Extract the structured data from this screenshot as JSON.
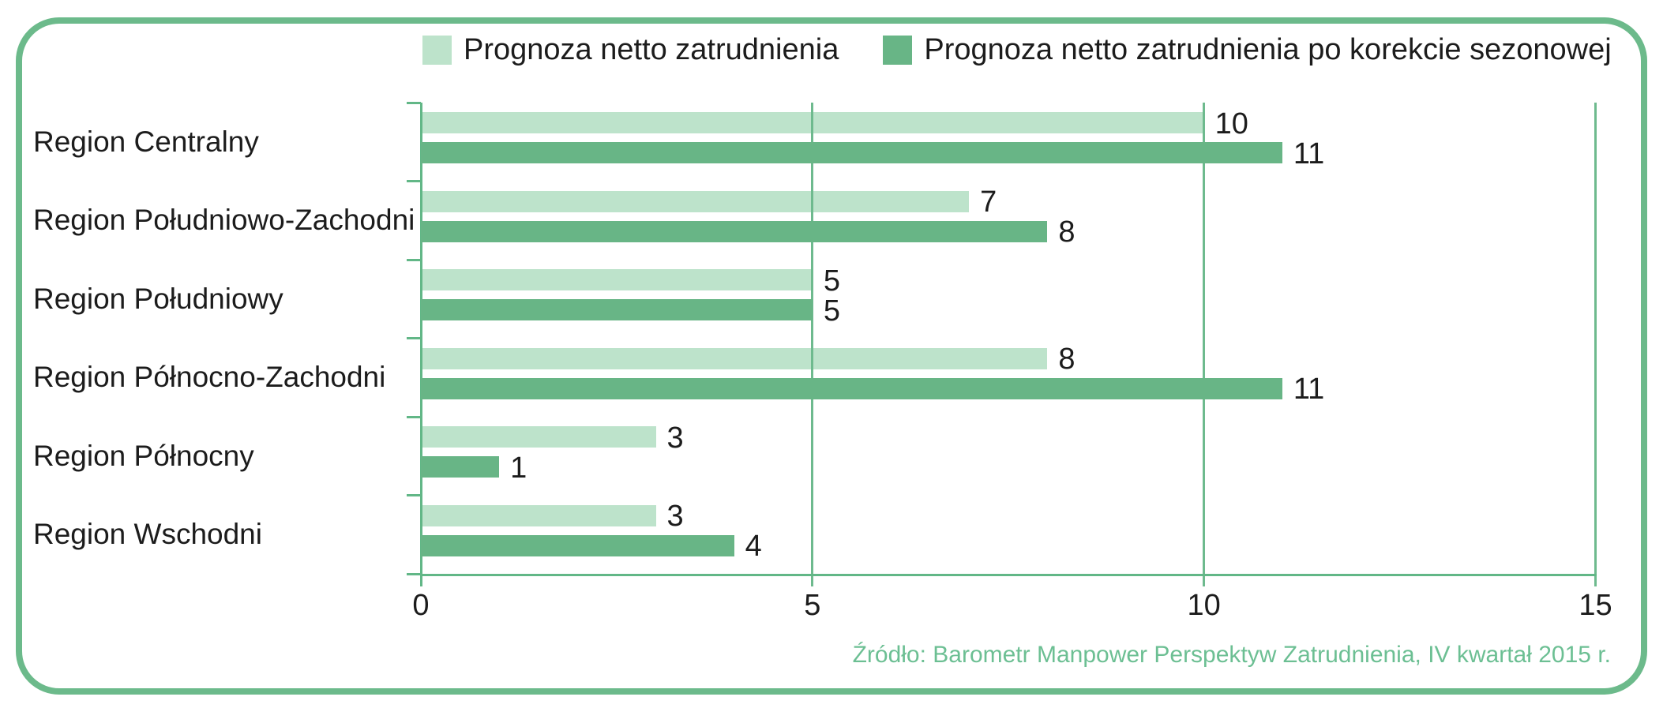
{
  "frame": {
    "border_color": "#6cba8b"
  },
  "legend": {
    "items": [
      {
        "label": "Prognoza netto zatrudnienia",
        "color": "#bde3cb"
      },
      {
        "label": "Prognoza netto zatrudnienia po korekcie sezonowej",
        "color": "#68b586"
      }
    ]
  },
  "source_note": "Źródło: Barometr Manpower Perspektyw Zatrudnienia, IV kwartał 2015 r.",
  "chart_data": {
    "type": "bar",
    "orientation": "horizontal",
    "title": "",
    "xlabel": "",
    "ylabel": "",
    "categories": [
      "Region Centralny",
      "Region Południowo-Zachodni",
      "Region Południowy",
      "Region Północno-Zachodni",
      "Region Północny",
      "Region Wschodni"
    ],
    "series": [
      {
        "name": "Prognoza netto zatrudnienia",
        "color": "#bde3cb",
        "values": [
          10,
          7,
          5,
          8,
          3,
          3
        ]
      },
      {
        "name": "Prognoza netto zatrudnienia po korekcie sezonowej",
        "color": "#68b586",
        "values": [
          11,
          8,
          5,
          11,
          1,
          4
        ]
      }
    ],
    "x_ticks": [
      0,
      5,
      10,
      15
    ],
    "xlim": [
      0,
      15
    ],
    "grid": true,
    "gridline_color": "#6eba8e",
    "axis_color": "#62b787",
    "value_labels": true,
    "legend_position": "top",
    "source": "Źródło: Barometr Manpower Perspektyw Zatrudnienia, IV kwartał 2015 r."
  }
}
